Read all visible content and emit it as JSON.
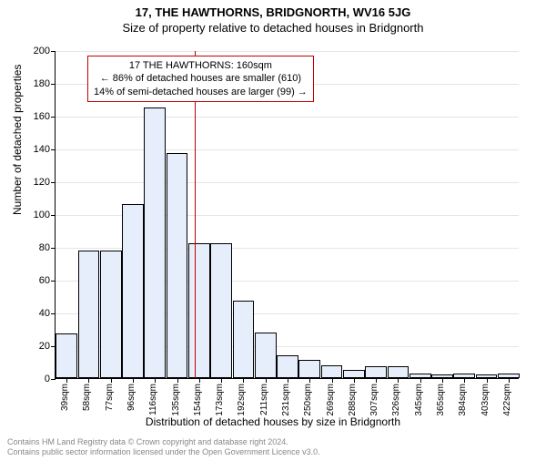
{
  "title_main": "17, THE HAWTHORNS, BRIDGNORTH, WV16 5JG",
  "title_sub": "Size of property relative to detached houses in Bridgnorth",
  "ylabel": "Number of detached properties",
  "xlabel": "Distribution of detached houses by size in Bridgnorth",
  "chart": {
    "type": "bar",
    "ylim": [
      0,
      200
    ],
    "ytick_step": 20,
    "yticks": [
      0,
      20,
      40,
      60,
      80,
      100,
      120,
      140,
      160,
      180,
      200
    ],
    "xticks": [
      "39sqm",
      "58sqm",
      "77sqm",
      "96sqm",
      "116sqm",
      "135sqm",
      "154sqm",
      "173sqm",
      "192sqm",
      "211sqm",
      "231sqm",
      "250sqm",
      "269sqm",
      "288sqm",
      "307sqm",
      "326sqm",
      "345sqm",
      "365sqm",
      "384sqm",
      "403sqm",
      "422sqm"
    ],
    "values": [
      27,
      78,
      78,
      106,
      165,
      137,
      82,
      82,
      47,
      28,
      14,
      11,
      8,
      5,
      7,
      7,
      3,
      2,
      3,
      2,
      3
    ],
    "bar_fill": "#e6eefc",
    "bar_border": "#000000",
    "grid_color": "rgba(0,0,0,0.1)",
    "background": "#ffffff",
    "ref_line_index": 6.3,
    "ref_line_color": "#c00000"
  },
  "info_box": {
    "line1": "17 THE HAWTHORNS: 160sqm",
    "line2": "← 86% of detached houses are smaller (610)",
    "line3": "14% of semi-detached houses are larger (99) →",
    "border_color": "#c00000"
  },
  "footer": {
    "line1": "Contains HM Land Registry data © Crown copyright and database right 2024.",
    "line2": "Contains public sector information licensed under the Open Government Licence v3.0."
  }
}
